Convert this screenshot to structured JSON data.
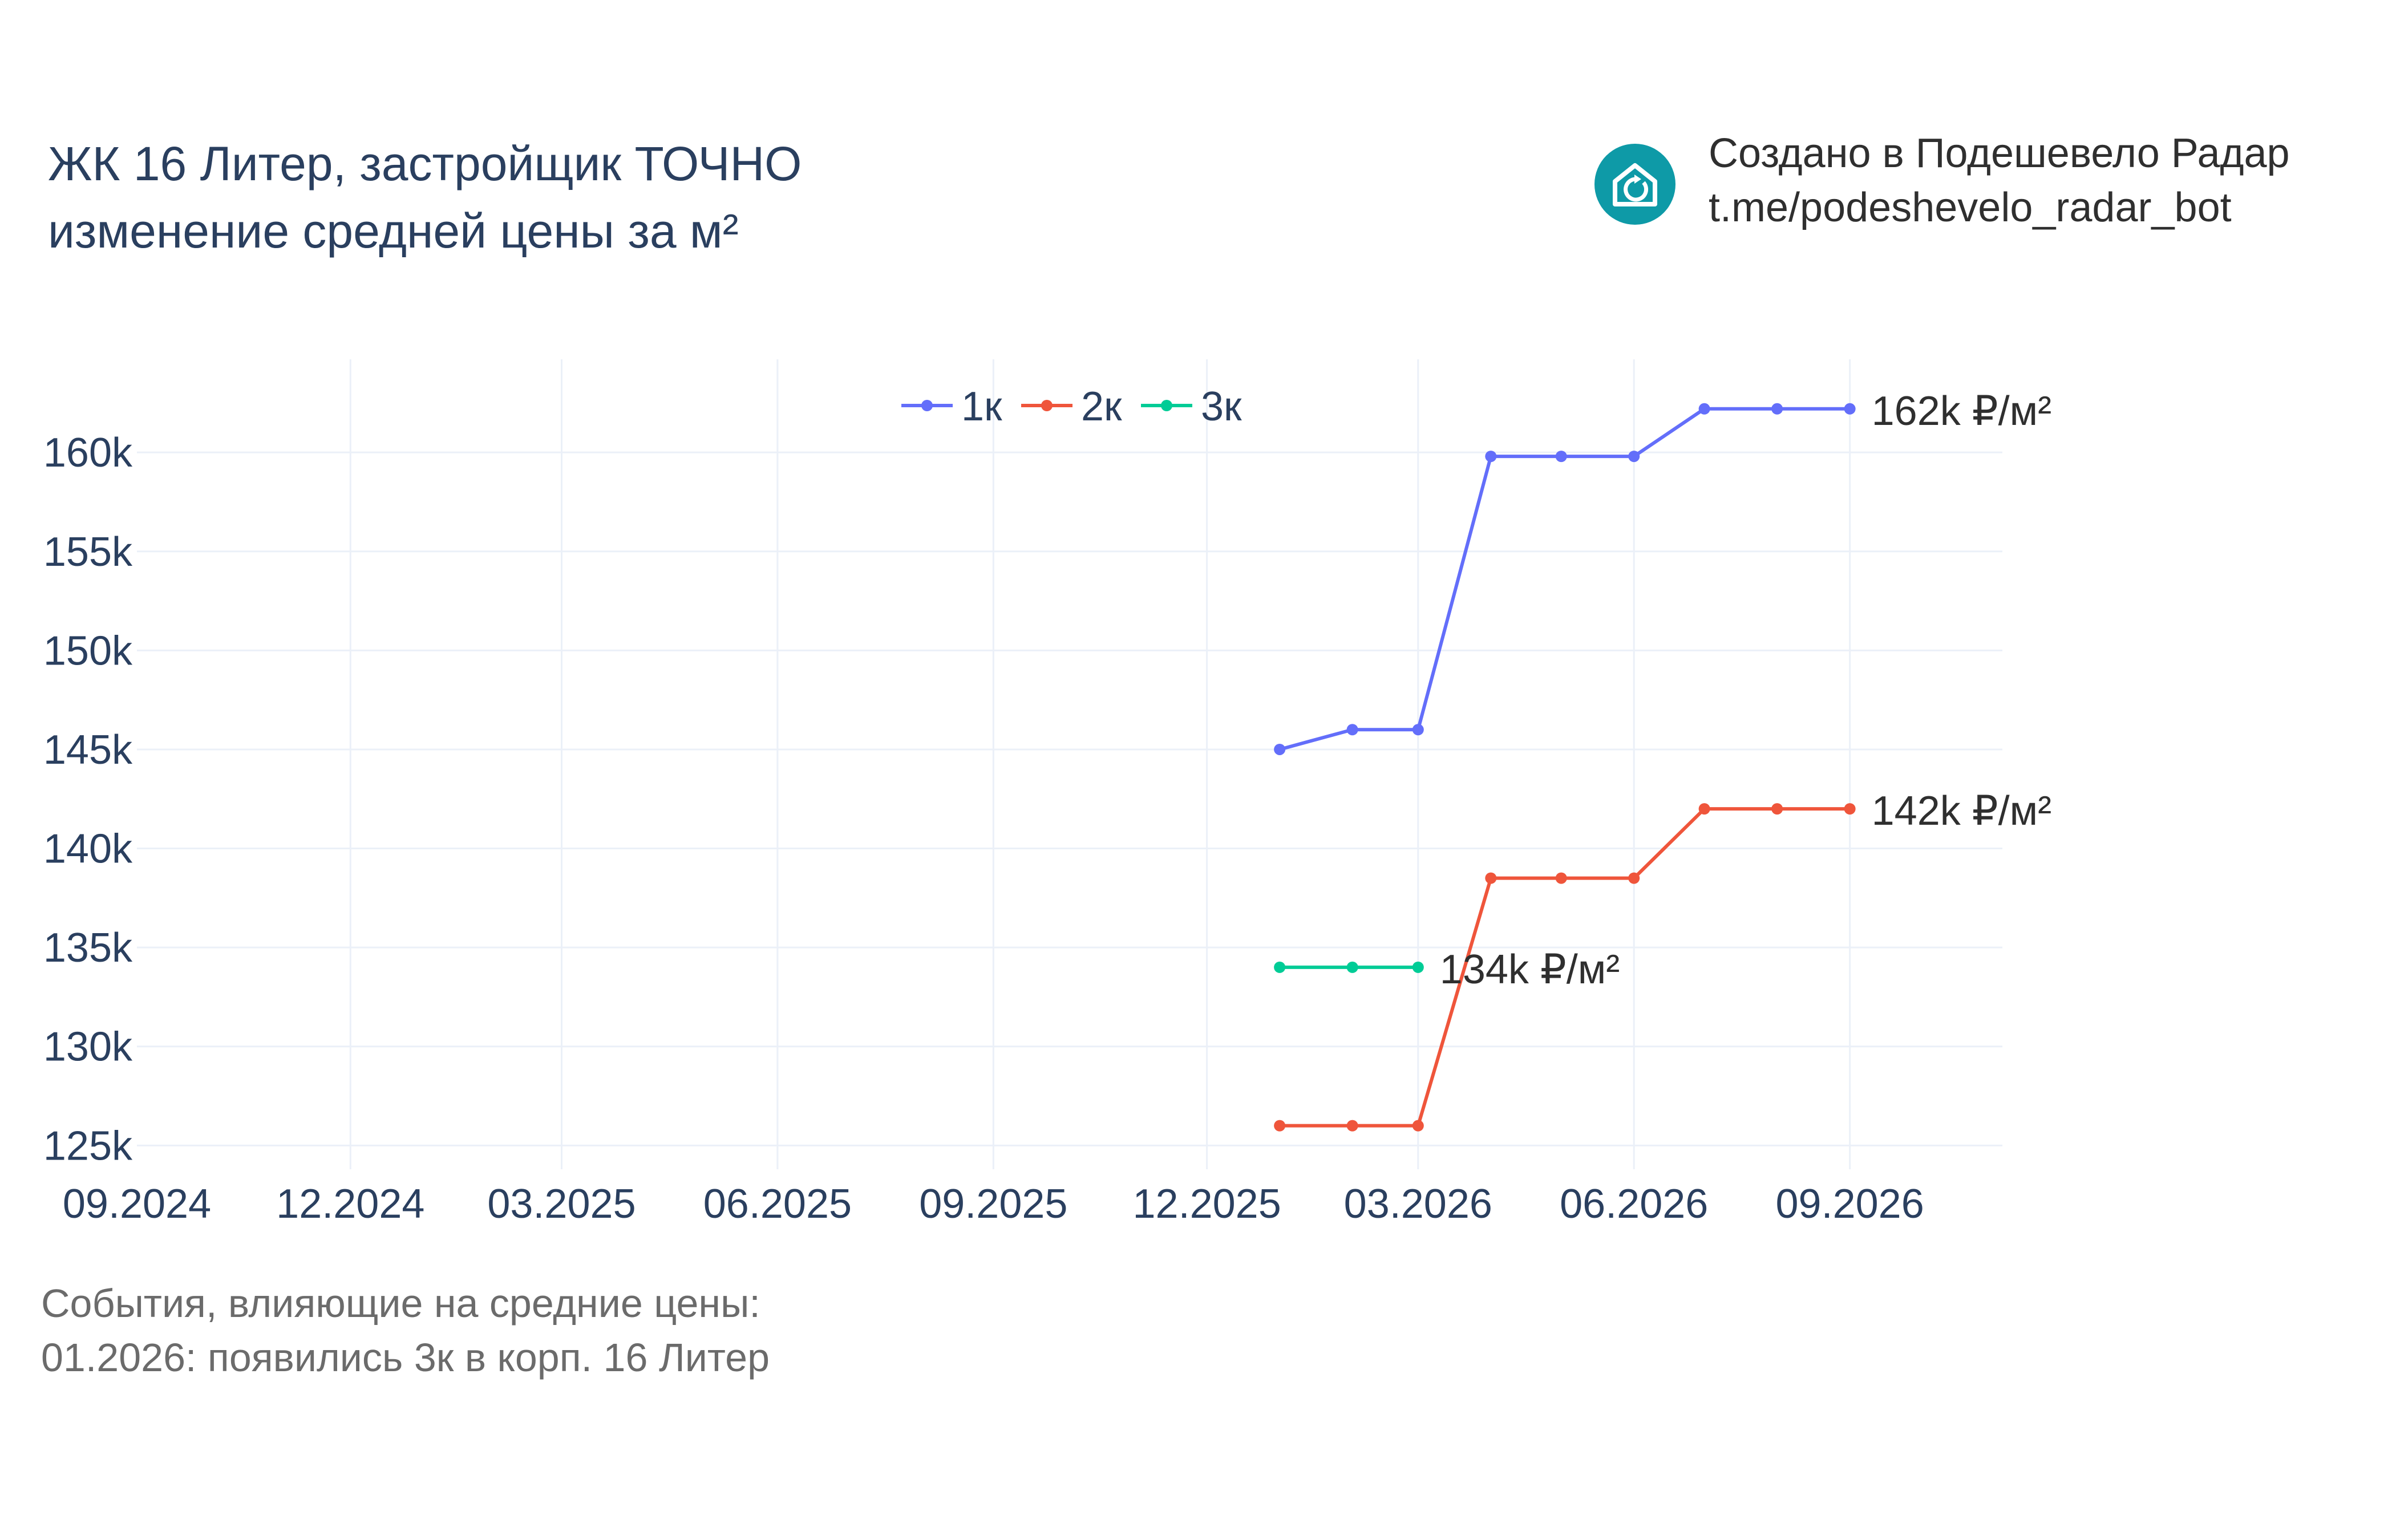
{
  "title": {
    "line1": "ЖК 16 Литер, застройщик ТОЧНО",
    "line2": "изменение средней цены за м²"
  },
  "branding": {
    "line1": "Создано в Подешевело Радар",
    "line2": "t.me/podeshevelo_radar_bot",
    "logo_icon": "house-refresh-icon",
    "logo_color": "#0e9aa7"
  },
  "events": {
    "heading": "События, влияющие на средние цены:",
    "items": [
      "01.2026: появились 3к в корп. 16 Литер"
    ]
  },
  "chart_data": {
    "type": "line",
    "title": "",
    "xlabel": "",
    "ylabel": "",
    "x_ticks": [
      "09.2024",
      "12.2024",
      "03.2025",
      "06.2025",
      "09.2025",
      "12.2025",
      "03.2026",
      "06.2026",
      "09.2026"
    ],
    "y_ticks": [
      "125k",
      "130k",
      "135k",
      "140k",
      "145k",
      "150k",
      "155k",
      "160k"
    ],
    "ylim": [
      123800,
      164700
    ],
    "xlim": [
      "2024-09-01",
      "2026-11-05"
    ],
    "grid": true,
    "legend_position": "top-center",
    "series": [
      {
        "name": "1к",
        "color": "#636efa",
        "x": [
          "2026-01-01",
          "2026-02-01",
          "2026-03-01",
          "2026-04-01",
          "2026-05-01",
          "2026-06-01",
          "2026-07-01",
          "2026-08-01",
          "2026-09-01"
        ],
        "y": [
          145000,
          146000,
          146000,
          159800,
          159800,
          159800,
          162200,
          162200,
          162200
        ],
        "end_label": "162k ₽/м²"
      },
      {
        "name": "2к",
        "color": "#ef553b",
        "x": [
          "2026-01-01",
          "2026-02-01",
          "2026-03-01",
          "2026-04-01",
          "2026-05-01",
          "2026-06-01",
          "2026-07-01",
          "2026-08-01",
          "2026-09-01"
        ],
        "y": [
          126000,
          126000,
          126000,
          138500,
          138500,
          138500,
          142000,
          142000,
          142000
        ],
        "end_label": "142k ₽/м²"
      },
      {
        "name": "3к",
        "color": "#00cc96",
        "x": [
          "2026-01-01",
          "2026-02-01",
          "2026-03-01"
        ],
        "y": [
          134000,
          134000,
          134000
        ],
        "end_label": "134k ₽/м²"
      }
    ]
  }
}
